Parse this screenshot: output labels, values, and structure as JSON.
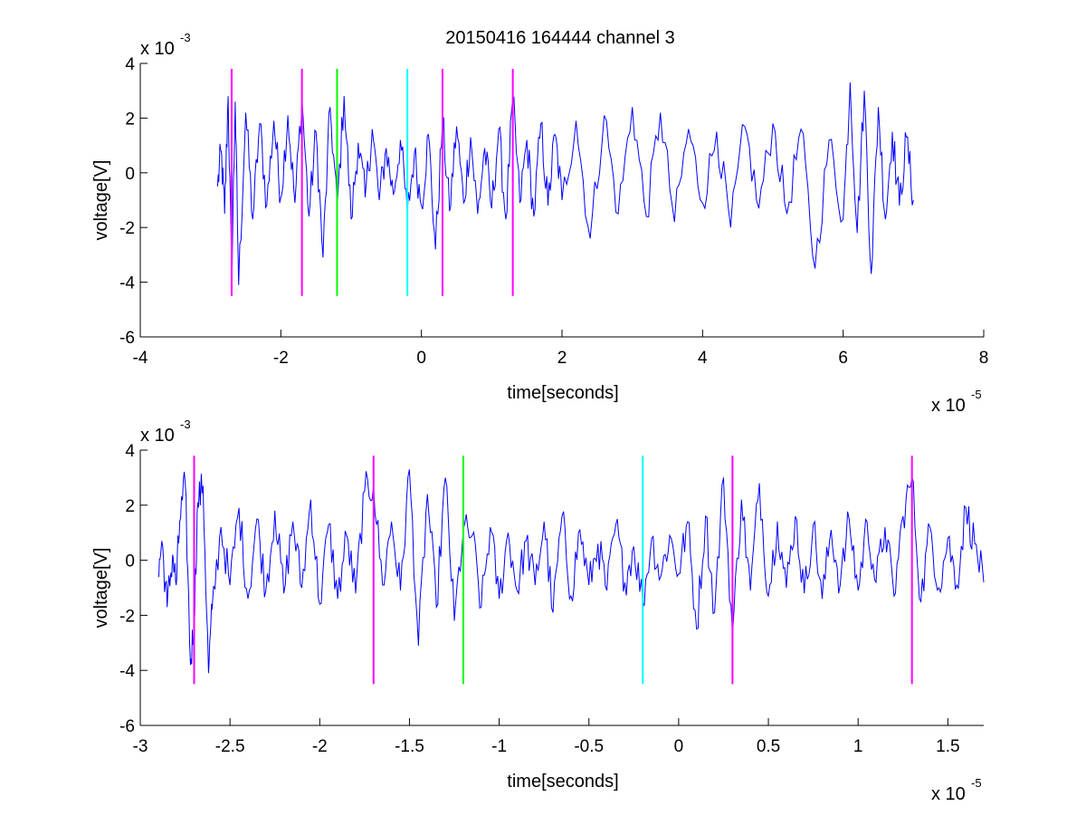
{
  "title": "20150416 164444 channel 3",
  "colors": {
    "signal": "#0000ff",
    "marker_magenta": "#ff00ff",
    "marker_green": "#00ff00",
    "marker_cyan": "#00ffff",
    "axis": "#000000",
    "background": "#ffffff"
  },
  "chart_data": [
    {
      "type": "line",
      "title": "20150416 164444 channel 3",
      "xlabel": "time[seconds]",
      "ylabel": "voltage[V]",
      "xlim": [
        -4e-05,
        8e-05
      ],
      "ylim": [
        -0.006,
        0.004
      ],
      "x_ticks": [
        -4e-05,
        -2e-05,
        0,
        2e-05,
        4e-05,
        6e-05,
        8e-05
      ],
      "x_tick_labels": [
        "-4",
        "-2",
        "0",
        "2",
        "4",
        "6",
        "8"
      ],
      "y_ticks": [
        -0.006,
        -0.004,
        -0.002,
        0,
        0.002,
        0.004
      ],
      "y_tick_labels": [
        "-6",
        "-4",
        "-2",
        "0",
        "2",
        "4"
      ],
      "x_exponent": {
        "base": "x 10",
        "sup": "-5"
      },
      "y_exponent": {
        "base": "x 10",
        "sup": "-3"
      },
      "grid": false,
      "legend": "none",
      "series": [
        {
          "color": "#0000ff",
          "x": [
            -2.9e-05,
            -2.85e-05,
            -2.8e-05,
            -2.75e-05,
            -2.7e-05,
            -2.65e-05,
            -2.6e-05,
            -2.5e-05,
            -2.4e-05,
            -2.3e-05,
            -2.2e-05,
            -2.1e-05,
            -2e-05,
            -1.9e-05,
            -1.8e-05,
            -1.7e-05,
            -1.6e-05,
            -1.5e-05,
            -1.4e-05,
            -1.3e-05,
            -1.2e-05,
            -1.1e-05,
            -1e-05,
            -9e-06,
            -8e-06,
            -7e-06,
            -6e-06,
            -5e-06,
            -4e-06,
            -3e-06,
            -2e-06,
            -1e-06,
            0,
            1e-06,
            2e-06,
            3e-06,
            4e-06,
            5e-06,
            6e-06,
            7e-06,
            8e-06,
            9e-06,
            1e-05,
            1.1e-05,
            1.2e-05,
            1.3e-05,
            1.4e-05,
            1.5e-05,
            1.6e-05,
            1.7e-05,
            1.8e-05,
            1.9e-05,
            2e-05,
            2.2e-05,
            2.4e-05,
            2.6e-05,
            2.8e-05,
            3e-05,
            3.2e-05,
            3.4e-05,
            3.6e-05,
            3.8e-05,
            4e-05,
            4.2e-05,
            4.4e-05,
            4.6e-05,
            4.8e-05,
            5e-05,
            5.2e-05,
            5.4e-05,
            5.6e-05,
            5.8e-05,
            6e-05,
            6.1e-05,
            6.2e-05,
            6.3e-05,
            6.4e-05,
            6.5e-05,
            6.6e-05,
            6.7e-05,
            6.8e-05,
            6.9e-05,
            7e-05
          ],
          "y": [
            -0.0005,
            0.0008,
            -0.0015,
            0.0028,
            -0.0038,
            0.0026,
            -0.0041,
            0.0022,
            -0.0017,
            0.0018,
            -0.0012,
            0.0019,
            -0.0009,
            0.0021,
            -0.0011,
            0.0027,
            -0.0016,
            0.0015,
            -0.0031,
            0.0024,
            -0.0013,
            0.0028,
            -0.0017,
            0.0011,
            -0.0009,
            0.0016,
            -0.001,
            0.0009,
            -0.0008,
            0.0012,
            -0.0015,
            0.0007,
            -0.0012,
            0.0014,
            -0.0028,
            0.0019,
            -0.0014,
            0.0017,
            -0.0011,
            0.0013,
            -0.0015,
            0.0009,
            -0.0013,
            0.0016,
            -0.0017,
            0.0027,
            -0.0011,
            0.0012,
            -0.0016,
            0.0018,
            -0.0012,
            0.0014,
            -0.001,
            0.0019,
            -0.0024,
            0.0021,
            -0.0015,
            0.0024,
            -0.0016,
            0.0022,
            -0.0018,
            0.0016,
            -0.0011,
            0.0015,
            -0.002,
            0.0017,
            -0.0013,
            0.0018,
            -0.0015,
            0.0016,
            -0.0035,
            0.0012,
            -0.0017,
            0.0033,
            -0.0022,
            0.003,
            -0.0037,
            0.0024,
            -0.0017,
            0.0015,
            -0.0012,
            0.0013,
            -0.001
          ]
        }
      ],
      "markers": [
        {
          "x": -2.7e-05,
          "color": "#ff00ff"
        },
        {
          "x": -1.7e-05,
          "color": "#ff00ff"
        },
        {
          "x": -1.2e-05,
          "color": "#00ff00"
        },
        {
          "x": -2e-06,
          "color": "#00ffff"
        },
        {
          "x": 3e-06,
          "color": "#ff00ff"
        },
        {
          "x": 1.3e-05,
          "color": "#ff00ff"
        }
      ],
      "marker_range": [
        -0.0045,
        0.0038
      ]
    },
    {
      "type": "line",
      "xlabel": "time[seconds]",
      "ylabel": "voltage[V]",
      "xlim": [
        -3e-05,
        1.7e-05
      ],
      "ylim": [
        -0.006,
        0.004
      ],
      "x_ticks": [
        -3e-05,
        -2.5e-05,
        -2e-05,
        -1.5e-05,
        -1e-05,
        -5e-06,
        0,
        5e-06,
        1e-05,
        1.5e-05
      ],
      "x_tick_labels": [
        "-3",
        "-2.5",
        "-2",
        "-1.5",
        "-1",
        "-0.5",
        "0",
        "0.5",
        "1",
        "1.5"
      ],
      "y_ticks": [
        -0.006,
        -0.004,
        -0.002,
        0,
        0.002,
        0.004
      ],
      "y_tick_labels": [
        "-6",
        "-4",
        "-2",
        "0",
        "2",
        "4"
      ],
      "x_exponent": {
        "base": "x 10",
        "sup": "-5"
      },
      "y_exponent": {
        "base": "x 10",
        "sup": "-3"
      },
      "grid": false,
      "legend": "none",
      "series": [
        {
          "color": "#0000ff",
          "x": [
            -2.9e-05,
            -2.88e-05,
            -2.85e-05,
            -2.82e-05,
            -2.8e-05,
            -2.78e-05,
            -2.75e-05,
            -2.72e-05,
            -2.7e-05,
            -2.68e-05,
            -2.65e-05,
            -2.62e-05,
            -2.6e-05,
            -2.55e-05,
            -2.5e-05,
            -2.45e-05,
            -2.4e-05,
            -2.35e-05,
            -2.3e-05,
            -2.25e-05,
            -2.2e-05,
            -2.15e-05,
            -2.1e-05,
            -2.05e-05,
            -2e-05,
            -1.95e-05,
            -1.9e-05,
            -1.85e-05,
            -1.8e-05,
            -1.75e-05,
            -1.7e-05,
            -1.65e-05,
            -1.6e-05,
            -1.55e-05,
            -1.5e-05,
            -1.45e-05,
            -1.4e-05,
            -1.35e-05,
            -1.3e-05,
            -1.25e-05,
            -1.2e-05,
            -1.15e-05,
            -1.1e-05,
            -1.05e-05,
            -1e-05,
            -9.5e-06,
            -9e-06,
            -8.5e-06,
            -8e-06,
            -7.5e-06,
            -7e-06,
            -6.5e-06,
            -6e-06,
            -5.5e-06,
            -5e-06,
            -4.5e-06,
            -4e-06,
            -3.5e-06,
            -3e-06,
            -2.5e-06,
            -2e-06,
            -1.5e-06,
            -1e-06,
            -5e-07,
            0,
            5e-07,
            1e-06,
            1.5e-06,
            2e-06,
            2.5e-06,
            3e-06,
            3.5e-06,
            4e-06,
            4.5e-06,
            5e-06,
            5.5e-06,
            6e-06,
            6.5e-06,
            7e-06,
            7.5e-06,
            8e-06,
            8.5e-06,
            9e-06,
            9.5e-06,
            1e-05,
            1.05e-05,
            1.1e-05,
            1.15e-05,
            1.2e-05,
            1.25e-05,
            1.3e-05,
            1.35e-05,
            1.4e-05,
            1.45e-05,
            1.5e-05,
            1.55e-05,
            1.6e-05,
            1.65e-05,
            1.7e-05
          ],
          "y": [
            -0.0006,
            0.0007,
            -0.0017,
            0.0002,
            -0.0009,
            0.0014,
            0.0028,
            -0.0038,
            -0.0022,
            0.0021,
            0.0027,
            -0.0041,
            -0.0018,
            0.0012,
            -0.0009,
            0.0019,
            -0.0014,
            0.0015,
            -0.0011,
            0.0018,
            -0.0012,
            0.0014,
            -0.001,
            0.0022,
            -0.0016,
            0.0013,
            -0.0014,
            0.0009,
            -0.0012,
            0.0025,
            0.0027,
            -0.0009,
            0.0014,
            -0.0011,
            0.0033,
            -0.0031,
            0.0024,
            -0.0017,
            0.003,
            -0.0022,
            0.0011,
            0.0009,
            -0.0017,
            0.0012,
            -0.0014,
            0.001,
            -0.0011,
            0.0007,
            -0.0009,
            0.0014,
            -0.0019,
            0.0016,
            -0.0013,
            0.0011,
            -0.0009,
            0.0006,
            -0.0011,
            0.0013,
            -0.0008,
            0.0005,
            -0.0015,
            0.0008,
            -0.0006,
            0.0009,
            -0.0005,
            0.0014,
            -0.0025,
            0.0016,
            -0.0019,
            0.003,
            -0.0027,
            0.0022,
            -0.0011,
            0.0028,
            -0.0013,
            0.0014,
            -0.001,
            0.0016,
            -0.0012,
            0.0013,
            -0.0014,
            0.0011,
            -0.0009,
            0.0015,
            -0.0011,
            0.0014,
            -0.0008,
            0.0012,
            -0.0013,
            0.0016,
            0.003,
            -0.0015,
            0.0012,
            -0.001,
            0.0008,
            -0.0009,
            0.0019,
            0.0006,
            -0.0008
          ]
        }
      ],
      "markers": [
        {
          "x": -2.7e-05,
          "color": "#ff00ff"
        },
        {
          "x": -1.7e-05,
          "color": "#ff00ff"
        },
        {
          "x": -1.2e-05,
          "color": "#00ff00"
        },
        {
          "x": -2e-06,
          "color": "#00ffff"
        },
        {
          "x": 3e-06,
          "color": "#ff00ff"
        },
        {
          "x": 1.3e-05,
          "color": "#ff00ff"
        }
      ],
      "marker_range": [
        -0.0045,
        0.0038
      ]
    }
  ]
}
